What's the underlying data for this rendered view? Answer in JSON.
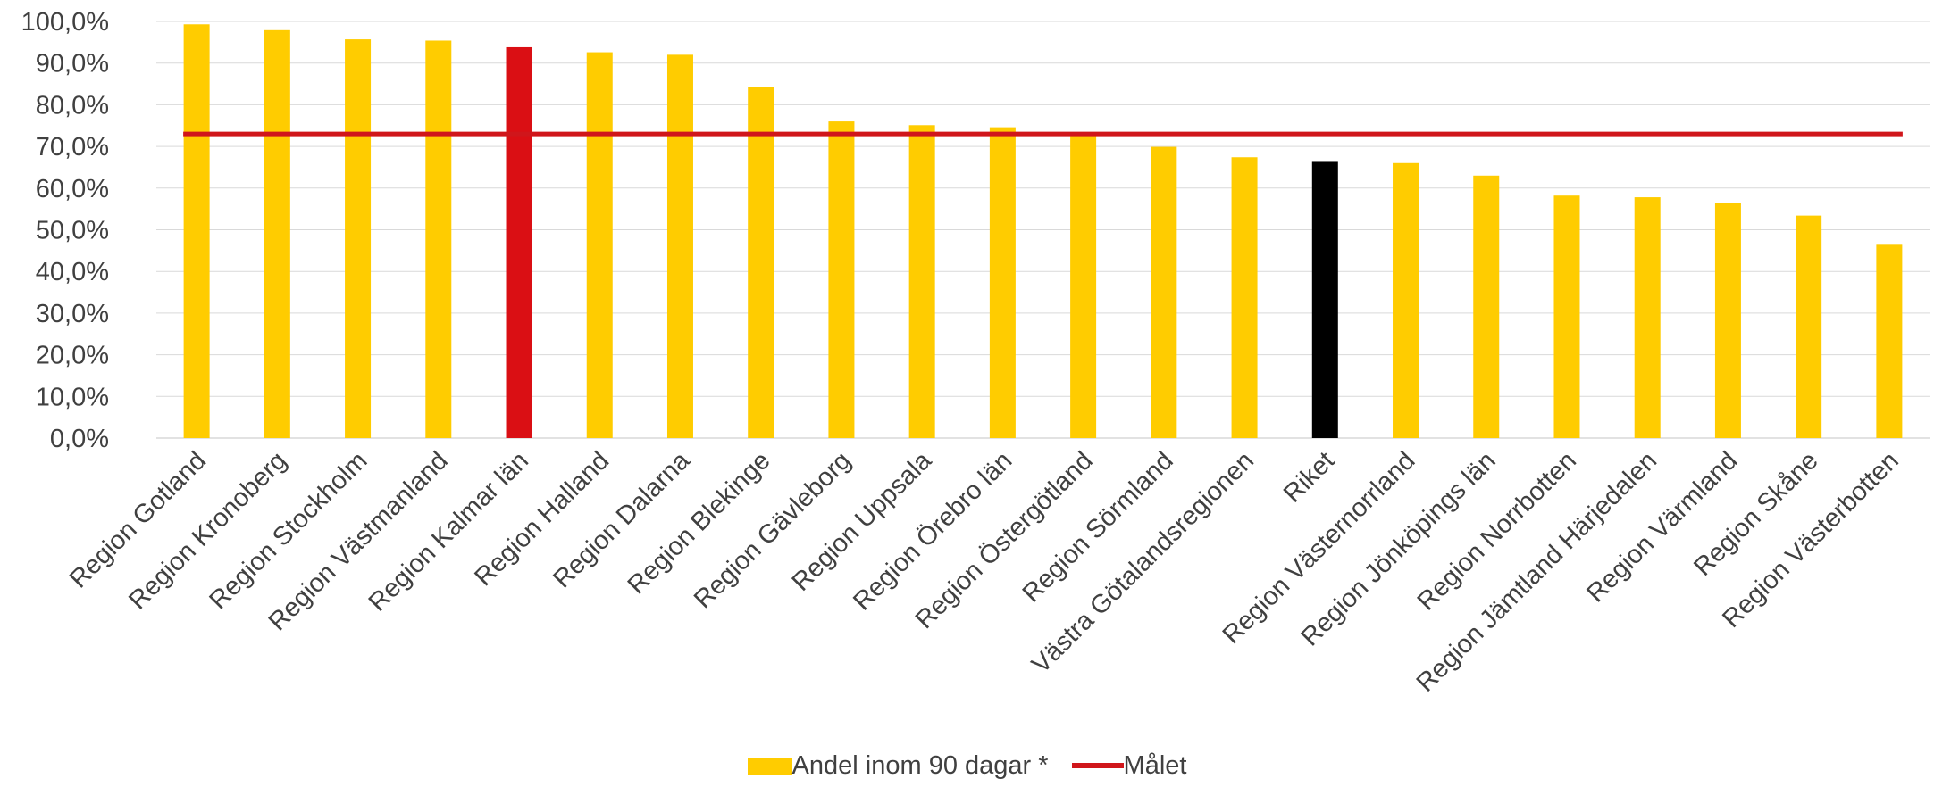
{
  "chart_data": {
    "type": "bar",
    "categories": [
      "Region Gotland",
      "Region Kronoberg",
      "Region Stockholm",
      "Region Västmanland",
      "Region Kalmar län",
      "Region Halland",
      "Region Dalarna",
      "Region Blekinge",
      "Region Gävleborg",
      "Region Uppsala",
      "Region Örebro län",
      "Region Östergötland",
      "Region Sörmland",
      "Västra Götalandsregionen",
      "Riket",
      "Region Västernorrland",
      "Region Jönköpings län",
      "Region Norrbotten",
      "Region Jämtland Härjedalen",
      "Region Värmland",
      "Region Skåne",
      "Region Västerbotten"
    ],
    "series": [
      {
        "name": "Andel inom 90 dagar *",
        "type": "bar",
        "values": [
          99.3,
          97.9,
          95.7,
          95.4,
          93.8,
          92.6,
          92.0,
          84.2,
          76.0,
          75.1,
          74.6,
          72.9,
          69.9,
          67.4,
          66.5,
          66.0,
          63.0,
          58.2,
          57.8,
          56.5,
          53.4,
          46.4
        ]
      },
      {
        "name": "Målet",
        "type": "line",
        "value": 73.0
      }
    ],
    "ylim": [
      0,
      100
    ],
    "yticks": [
      "0,0%",
      "10,0%",
      "20,0%",
      "30,0%",
      "40,0%",
      "50,0%",
      "60,0%",
      "70,0%",
      "80,0%",
      "90,0%",
      "100,0%"
    ],
    "grid": true,
    "legend_position": "bottom",
    "colors": {
      "default_bar": "#FFCC00",
      "highlight_red": "#DA0F14",
      "highlight_black": "#000000",
      "target_line": "#D0161B",
      "grid": "#D9D9D9"
    },
    "highlights": {
      "Region Kalmar län": "highlight_red",
      "Riket": "highlight_black"
    }
  }
}
